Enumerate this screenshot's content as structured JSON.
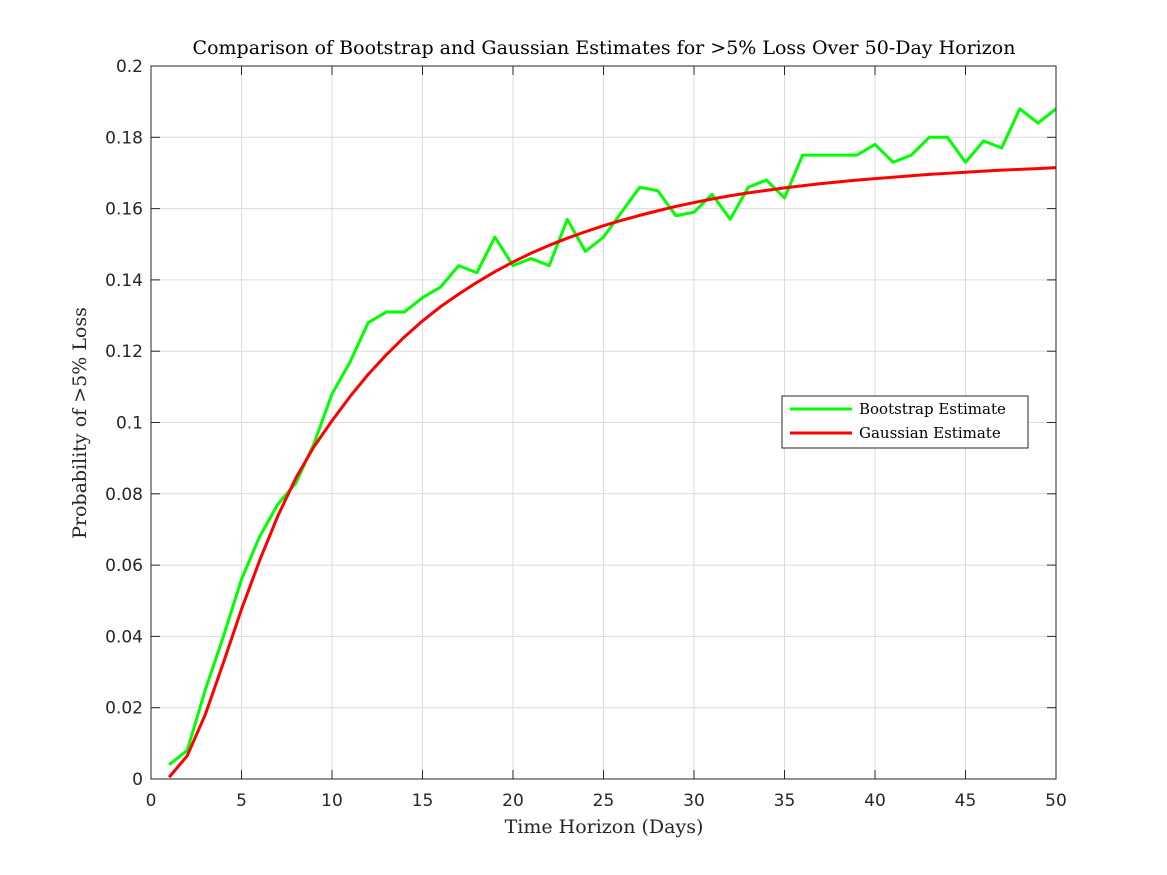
{
  "chart_data": {
    "type": "line",
    "title": "Comparison of Bootstrap and Gaussian Estimates for >5% Loss Over 50-Day Horizon",
    "xlabel": "Time Horizon (Days)",
    "ylabel": "Probability of >5% Loss",
    "xlim": [
      0,
      50
    ],
    "ylim": [
      0,
      0.2
    ],
    "xticks": [
      0,
      5,
      10,
      15,
      20,
      25,
      30,
      35,
      40,
      45,
      50
    ],
    "yticks": [
      0,
      0.02,
      0.04,
      0.06,
      0.08,
      0.1,
      0.12,
      0.14,
      0.16,
      0.18,
      0.2
    ],
    "xtick_labels": [
      "0",
      "5",
      "10",
      "15",
      "20",
      "25",
      "30",
      "35",
      "40",
      "45",
      "50"
    ],
    "ytick_labels": [
      "0",
      "0.02",
      "0.04",
      "0.06",
      "0.08",
      "0.1",
      "0.12",
      "0.14",
      "0.16",
      "0.18",
      "0.2"
    ],
    "grid": true,
    "legend_position": "right-center",
    "x": [
      1,
      2,
      3,
      4,
      5,
      6,
      7,
      8,
      9,
      10,
      11,
      12,
      13,
      14,
      15,
      16,
      17,
      18,
      19,
      20,
      21,
      22,
      23,
      24,
      25,
      26,
      27,
      28,
      29,
      30,
      31,
      32,
      33,
      34,
      35,
      36,
      37,
      38,
      39,
      40,
      41,
      42,
      43,
      44,
      45,
      46,
      47,
      48,
      49,
      50
    ],
    "series": [
      {
        "name": "Bootstrap Estimate",
        "color": "#00ff00",
        "values": [
          0.004,
          0.008,
          0.025,
          0.04,
          0.056,
          0.068,
          0.077,
          0.083,
          0.094,
          0.108,
          0.117,
          0.128,
          0.131,
          0.131,
          0.135,
          0.138,
          0.144,
          0.142,
          0.152,
          0.144,
          0.146,
          0.144,
          0.157,
          0.148,
          0.152,
          0.159,
          0.166,
          0.165,
          0.158,
          0.159,
          0.164,
          0.157,
          0.166,
          0.168,
          0.163,
          0.175,
          0.175,
          0.175,
          0.175,
          0.178,
          0.173,
          0.175,
          0.18,
          0.18,
          0.173,
          0.179,
          0.177,
          0.188,
          0.184,
          0.188
        ]
      },
      {
        "name": "Gaussian Estimate",
        "color": "#ff0000",
        "values": [
          0.0005,
          0.0065,
          0.0181,
          0.0326,
          0.0476,
          0.0613,
          0.0737,
          0.0844,
          0.0932,
          0.1005,
          0.1073,
          0.1135,
          0.119,
          0.124,
          0.1285,
          0.1325,
          0.136,
          0.1393,
          0.1423,
          0.145,
          0.1475,
          0.1497,
          0.1517,
          0.1535,
          0.1552,
          0.1567,
          0.1581,
          0.1594,
          0.1606,
          0.1617,
          0.1627,
          0.1636,
          0.1644,
          0.1651,
          0.1658,
          0.1664,
          0.167,
          0.1675,
          0.168,
          0.1684,
          0.1688,
          0.1692,
          0.1696,
          0.1699,
          0.1702,
          0.1705,
          0.1708,
          0.171,
          0.1712,
          0.1715
        ]
      }
    ]
  }
}
